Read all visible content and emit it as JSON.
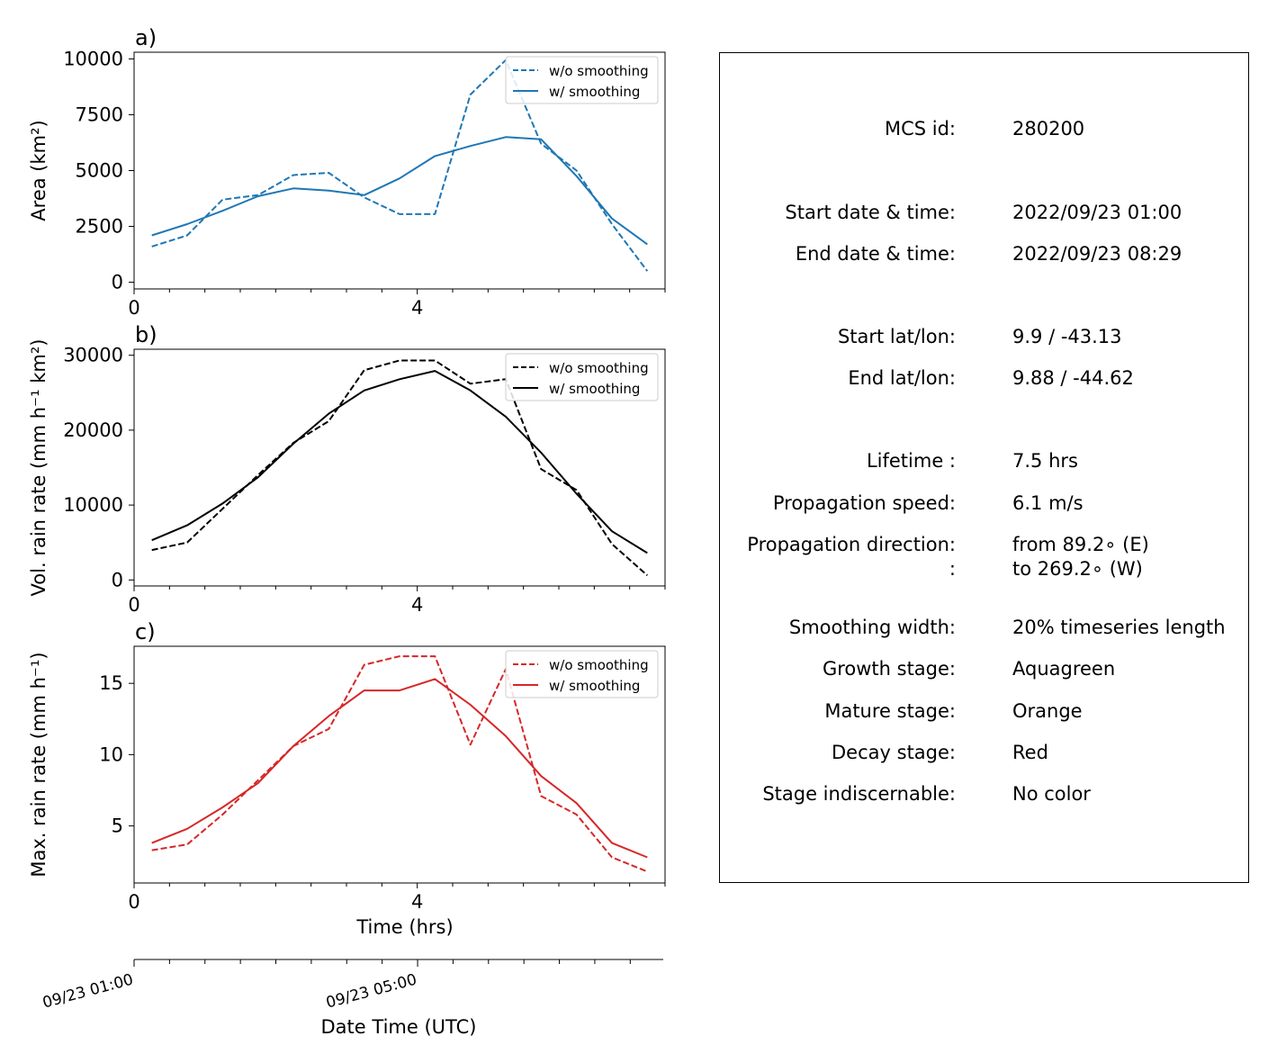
{
  "chart_data": [
    {
      "type": "line",
      "panel_label": "a)",
      "ylabel": "Area  (km²)",
      "xlabel": "",
      "xlim": [
        0,
        7.5
      ],
      "ylim": [
        -300,
        10300
      ],
      "yticks": [
        0,
        2500,
        5000,
        7500,
        10000
      ],
      "ytick_labels": [
        "0",
        "2500",
        "5000",
        "7500",
        "10000"
      ],
      "xticks": [
        0,
        4
      ],
      "xtick_labels": [
        "0",
        "4"
      ],
      "legend_position": "upper right",
      "x": [
        0.25,
        0.75,
        1.25,
        1.75,
        2.25,
        2.75,
        3.25,
        3.75,
        4.25,
        4.75,
        5.25,
        5.75,
        6.25,
        6.75,
        7.25
      ],
      "series": [
        {
          "name": "w/o smoothing",
          "color": "#1f77b4",
          "dash": "dashed",
          "values": [
            1600,
            2100,
            3700,
            3900,
            4800,
            4900,
            3800,
            3050,
            3050,
            8400,
            9950,
            6200,
            5000,
            2600,
            500
          ]
        },
        {
          "name": "w/ smoothing",
          "color": "#1f77b4",
          "dash": "solid",
          "values": [
            2100,
            2600,
            3200,
            3850,
            4200,
            4100,
            3900,
            4650,
            5650,
            6100,
            6500,
            6400,
            4750,
            2850,
            1700
          ]
        }
      ]
    },
    {
      "type": "line",
      "panel_label": "b)",
      "ylabel": "Vol. rain rate (mm h⁻¹ km²)",
      "xlabel": "",
      "xlim": [
        0,
        7.5
      ],
      "ylim": [
        -800,
        30800
      ],
      "yticks": [
        0,
        10000,
        20000,
        30000
      ],
      "ytick_labels": [
        "0",
        "10000",
        "20000",
        "30000"
      ],
      "xticks": [
        0,
        4
      ],
      "xtick_labels": [
        "0",
        "4"
      ],
      "legend_position": "upper right",
      "x": [
        0.25,
        0.75,
        1.25,
        1.75,
        2.25,
        2.75,
        3.25,
        3.75,
        4.25,
        4.75,
        5.25,
        5.75,
        6.25,
        6.75,
        7.25
      ],
      "series": [
        {
          "name": "w/o smoothing",
          "color": "#000000",
          "dash": "dashed",
          "values": [
            4000,
            5000,
            9500,
            14000,
            18300,
            21200,
            28000,
            29300,
            29300,
            26200,
            26800,
            14800,
            12000,
            4800,
            600
          ]
        },
        {
          "name": "w/ smoothing",
          "color": "#000000",
          "dash": "solid",
          "values": [
            5300,
            7300,
            10200,
            13700,
            18200,
            22200,
            25300,
            26800,
            27900,
            25300,
            21800,
            17000,
            11500,
            6500,
            3600
          ]
        }
      ]
    },
    {
      "type": "line",
      "panel_label": "c)",
      "ylabel": "Max. rain rate  (mm h⁻¹)",
      "xlabel": "Time (hrs)",
      "xlim": [
        0,
        7.5
      ],
      "ylim": [
        1.0,
        17.6
      ],
      "yticks": [
        5,
        10,
        15
      ],
      "ytick_labels": [
        "5",
        "10",
        "15"
      ],
      "xticks": [
        0,
        4
      ],
      "xtick_labels": [
        "0",
        "4"
      ],
      "legend_position": "upper right",
      "x": [
        0.25,
        0.75,
        1.25,
        1.75,
        2.25,
        2.75,
        3.25,
        3.75,
        4.25,
        4.75,
        5.25,
        5.75,
        6.25,
        6.75,
        7.25
      ],
      "series": [
        {
          "name": "w/o smoothing",
          "color": "#d62728",
          "dash": "dashed",
          "values": [
            3.3,
            3.7,
            5.8,
            8.2,
            10.6,
            11.8,
            16.3,
            16.9,
            16.9,
            10.7,
            16.0,
            7.1,
            5.8,
            2.8,
            1.8
          ]
        },
        {
          "name": "w/ smoothing",
          "color": "#d62728",
          "dash": "solid",
          "values": [
            3.8,
            4.8,
            6.3,
            8.0,
            10.6,
            12.7,
            14.5,
            14.5,
            15.3,
            13.5,
            11.3,
            8.5,
            6.6,
            3.8,
            2.8
          ]
        }
      ]
    }
  ],
  "date_axis": {
    "xlabel": "Date Time (UTC)",
    "tick_labels": [
      {
        "value": 0,
        "label": "09/23 01:00"
      },
      {
        "value": 4,
        "label": "09/23 05:00"
      }
    ]
  },
  "info": {
    "rows": [
      {
        "label": "MCS id:",
        "value": "280200"
      },
      {
        "label": "Start date & time:",
        "value": "2022/09/23 01:00"
      },
      {
        "label": "End date & time:",
        "value": "2022/09/23 08:29"
      },
      {
        "label": "Start lat/lon:",
        "value": "9.9 / -43.13"
      },
      {
        "label": "End lat/lon:",
        "value": "9.88 / -44.62"
      },
      {
        "label": "Lifetime :",
        "value": "7.5 hrs"
      },
      {
        "label": "Propagation speed:",
        "value": "6.1 m/s"
      },
      {
        "label": "Propagation direction:",
        "value": "from  89.2∘ (E)"
      },
      {
        "label": ":",
        "value": "to   269.2∘ (W)"
      },
      {
        "label": "Smoothing width:",
        "value": "20% timeseries length"
      },
      {
        "label": "Growth stage:",
        "value": "Aquagreen"
      },
      {
        "label": "Mature stage:",
        "value": "Orange"
      },
      {
        "label": "Decay stage:",
        "value": "Red"
      },
      {
        "label": "Stage indiscernable:",
        "value": "No color"
      }
    ]
  }
}
